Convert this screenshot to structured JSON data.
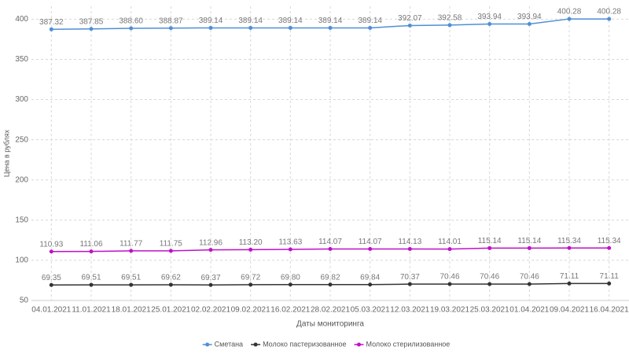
{
  "chart_data": {
    "type": "line",
    "y_label": "Цена в рублях",
    "x_label": "Даты мониторинга",
    "categories": [
      "04.01.2021",
      "11.01.2021",
      "18.01.2021",
      "25.01.2021",
      "02.02.2021",
      "09.02.2021",
      "16.02.2021",
      "28.02.2021",
      "05.03.2021",
      "12.03.2021",
      "19.03.2021",
      "25.03.2021",
      "01.04.2021",
      "09.04.2021",
      "16.04.2021"
    ],
    "ylim": [
      50,
      416
    ],
    "yticks": [
      50,
      100,
      150,
      200,
      250,
      300,
      350,
      400
    ],
    "grid": true,
    "legend": "bottom",
    "series": [
      {
        "name": "Сметана",
        "color": "#4f8fd6",
        "values": [
          387.32,
          387.85,
          388.6,
          388.87,
          389.14,
          389.14,
          389.14,
          389.14,
          389.14,
          392.07,
          392.58,
          393.94,
          393.94,
          400.28,
          400.28
        ],
        "value_labels": [
          "387.32",
          "387.85",
          "388.60",
          "388.87",
          "389.14",
          "389.14",
          "389.14",
          "389.14",
          "389.14",
          "392.07",
          "392.58",
          "393.94",
          "393.94",
          "400.28",
          "400.28"
        ]
      },
      {
        "name": "Молоко пастеризованное",
        "color": "#333333",
        "values": [
          69.35,
          69.51,
          69.51,
          69.62,
          69.37,
          69.72,
          69.8,
          69.82,
          69.84,
          70.37,
          70.46,
          70.46,
          70.46,
          71.11,
          71.11
        ],
        "value_labels": [
          "69.35",
          "69.51",
          "69.51",
          "69.62",
          "69.37",
          "69.72",
          "69.80",
          "69.82",
          "69.84",
          "70.37",
          "70.46",
          "70.46",
          "70.46",
          "71.11",
          "71.11"
        ]
      },
      {
        "name": "Молоко стерилизованное",
        "color": "#c010c8",
        "values": [
          110.93,
          111.06,
          111.77,
          111.75,
          112.96,
          113.2,
          113.63,
          114.07,
          114.07,
          114.13,
          114.01,
          115.14,
          115.14,
          115.34,
          115.34
        ],
        "value_labels": [
          "110.93",
          "111.06",
          "111.77",
          "111.75",
          "112.96",
          "113.20",
          "113.63",
          "114.07",
          "114.07",
          "114.13",
          "114.01",
          "115.14",
          "115.14",
          "115.34",
          "115.34"
        ]
      }
    ]
  }
}
